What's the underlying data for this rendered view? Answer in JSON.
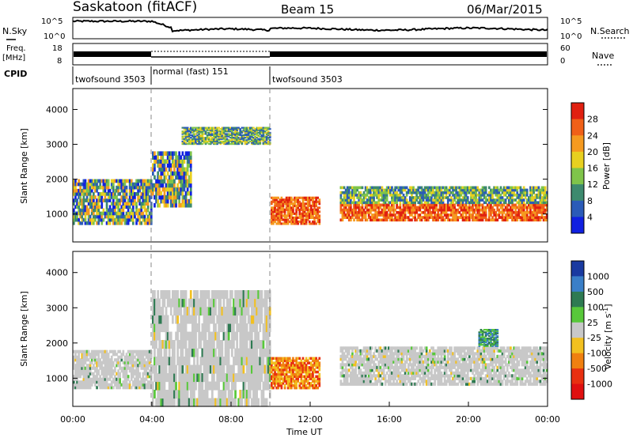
{
  "header": {
    "station": "Saskatoon (fitACF)",
    "beam": "Beam 15",
    "date": "06/Mar/2015"
  },
  "strip1": {
    "left_label": "N.Sky",
    "right_label": "N.Search",
    "left_ticks": [
      "10^5",
      "10^0"
    ],
    "right_ticks": [
      "10^5",
      "10^0"
    ]
  },
  "strip2": {
    "left_label_1": "Freq.",
    "left_label_2": "[MHz]",
    "left_ticks": [
      "18",
      "8"
    ],
    "right_label": "Nave",
    "right_ticks": [
      "60",
      "0"
    ]
  },
  "cpid": {
    "label": "CPID",
    "modes": [
      {
        "name": "twofsound 3503",
        "start": 0,
        "end": 4
      },
      {
        "name": "normal (fast) 151",
        "start": 4,
        "end": 10
      },
      {
        "name": "twofsound 3503",
        "start": 10,
        "end": 24
      }
    ]
  },
  "chart_data": [
    {
      "type": "heatmap",
      "title": "",
      "ylabel": "Slant Range [km]",
      "xlabel": "",
      "xlim": [
        0,
        24
      ],
      "ylim": [
        200,
        4600
      ],
      "y_ticks": [
        1000,
        2000,
        3000,
        4000
      ],
      "colorbar": {
        "label": "Power [dB]",
        "ticks": [
          "4",
          "8",
          "12",
          "16",
          "20",
          "24",
          "28"
        ],
        "colors": [
          "#1020e0",
          "#2b5bb8",
          "#3d8a6e",
          "#7fc44a",
          "#e8d020",
          "#f59a20",
          "#f06018",
          "#e02010"
        ]
      },
      "regions": [
        {
          "t0": 0.0,
          "t1": 4.0,
          "r0": 700,
          "r1": 2000,
          "level": "mixed"
        },
        {
          "t0": 4.0,
          "t1": 6.0,
          "r0": 1200,
          "r1": 2800,
          "level": "mixed"
        },
        {
          "t0": 5.5,
          "t1": 10.0,
          "r0": 3000,
          "r1": 3500,
          "level": "green"
        },
        {
          "t0": 10.0,
          "t1": 12.5,
          "r0": 700,
          "r1": 1500,
          "level": "red"
        },
        {
          "t0": 13.5,
          "t1": 24.0,
          "r0": 800,
          "r1": 1800,
          "level": "red-orange"
        }
      ]
    },
    {
      "type": "heatmap",
      "title": "",
      "ylabel": "Slant Range [km]",
      "xlabel": "Time UT",
      "xlim": [
        0,
        24
      ],
      "ylim": [
        200,
        4600
      ],
      "x_ticks": [
        "00:00",
        "04:00",
        "08:00",
        "12:00",
        "16:00",
        "20:00",
        "00:00"
      ],
      "y_ticks": [
        1000,
        2000,
        3000,
        4000
      ],
      "colorbar": {
        "label": "Velocity [m s^-1]",
        "ticks": [
          "1000",
          "500",
          "100",
          "25",
          "-25",
          "-100",
          "-500",
          "-1000"
        ],
        "colors": [
          "#1a3aa0",
          "#3a7fc8",
          "#2e7a52",
          "#58c83a",
          "#c8c8c8",
          "#f2c020",
          "#f08010",
          "#e83010",
          "#e01010"
        ]
      },
      "regions": [
        {
          "t0": 0.0,
          "t1": 4.0,
          "r0": 700,
          "r1": 1800,
          "level": "ground"
        },
        {
          "t0": 4.0,
          "t1": 10.0,
          "r0": 200,
          "r1": 3500,
          "level": "ground"
        },
        {
          "t0": 10.0,
          "t1": 12.5,
          "r0": 700,
          "r1": 1600,
          "level": "negative"
        },
        {
          "t0": 13.5,
          "t1": 24.0,
          "r0": 800,
          "r1": 1900,
          "level": "ground"
        },
        {
          "t0": 20.5,
          "t1": 21.5,
          "r0": 1900,
          "r1": 2400,
          "level": "positive"
        }
      ]
    }
  ]
}
